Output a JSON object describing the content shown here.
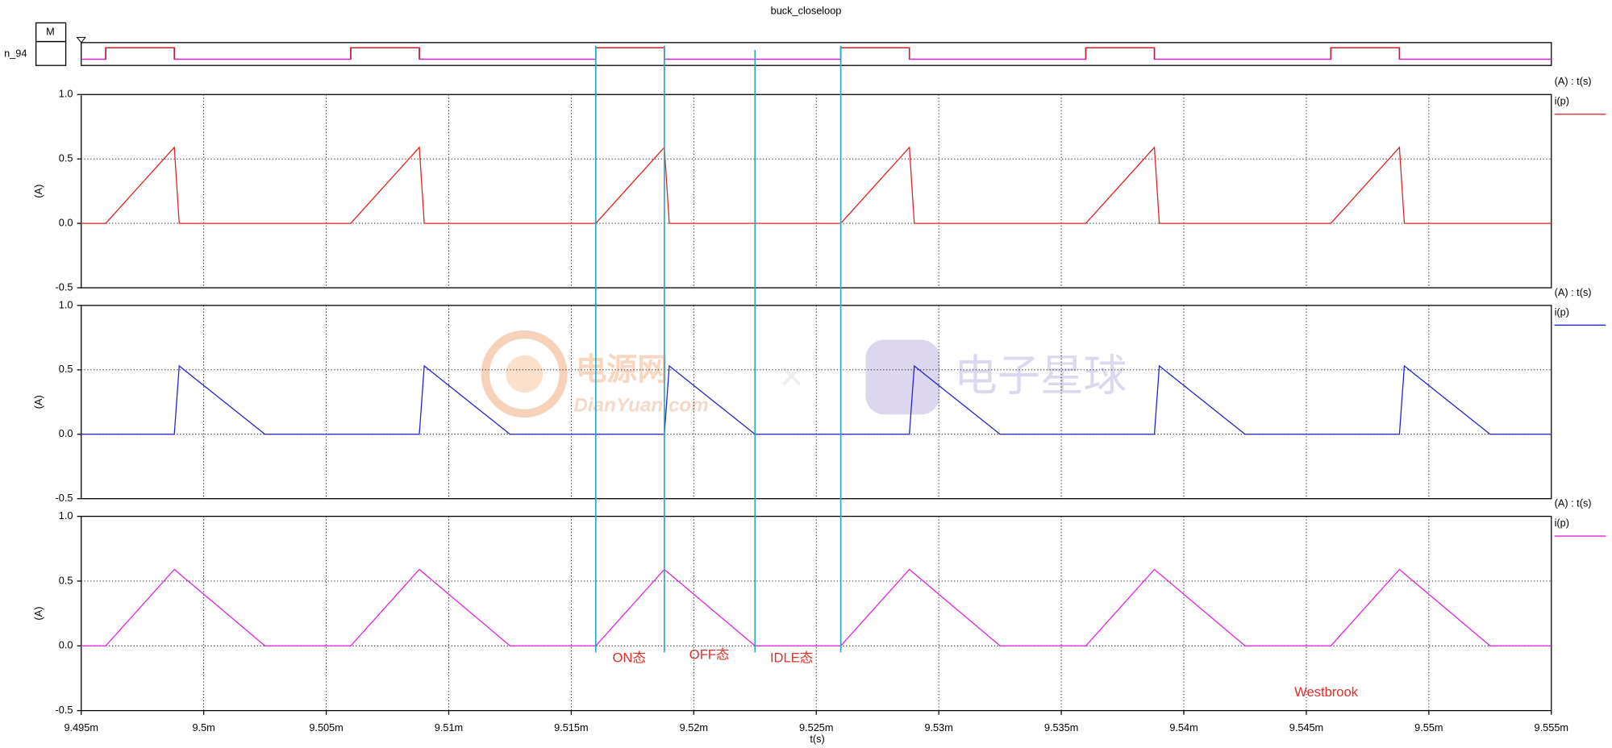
{
  "watermarks": [
    "电源网",
    "DianYuan.com",
    "电子星球"
  ],
  "cursors": [
    0.009516,
    0.0095188,
    0.0095225,
    0.009526
  ],
  "chart_data": [
    {
      "type": "digital",
      "title": "buck_closeloop",
      "label": "n_94",
      "box_label": "M",
      "color": "#e020e0",
      "xlim": [
        0.009495,
        0.009555
      ],
      "x": [
        0.009495,
        0.009496,
        0.0094988,
        0.009506,
        0.0095088,
        0.009516,
        0.0095188,
        0.009526,
        0.0095288,
        0.009536,
        0.0095388,
        0.009546,
        0.0095488,
        0.009555
      ],
      "values": [
        0,
        1,
        0,
        1,
        0,
        1,
        0,
        1,
        0,
        1,
        0,
        1,
        0,
        0
      ]
    },
    {
      "type": "line",
      "y_label": "(A)",
      "legend_header": "(A) : t(s)",
      "grid": true,
      "xlim": [
        0.009495,
        0.009555
      ],
      "ylim": [
        -0.5,
        1
      ],
      "yticks": [
        -0.5,
        {
          "value": 0,
          "label": "0.0"
        },
        0.5,
        {
          "value": 1,
          "label": "1.0"
        }
      ],
      "series": [
        {
          "name": "i(p)",
          "color": "#e02020",
          "x": [
            0.009495,
            0.009496,
            0.0094988,
            0.009499,
            0.009506,
            0.0095088,
            0.009509,
            0.009516,
            0.0095188,
            0.009519,
            0.009526,
            0.0095288,
            0.009529,
            0.009536,
            0.0095388,
            0.009539,
            0.009546,
            0.0095488,
            0.009549,
            0.009555
          ],
          "values": [
            0,
            0,
            0.59,
            0,
            0,
            0.59,
            0,
            0,
            0.59,
            0,
            0,
            0.59,
            0,
            0,
            0.59,
            0,
            0,
            0.59,
            0,
            0
          ]
        }
      ]
    },
    {
      "type": "line",
      "y_label": "(A)",
      "legend_header": "(A) : t(s)",
      "grid": true,
      "xlim": [
        0.009495,
        0.009555
      ],
      "ylim": [
        -0.5,
        1
      ],
      "yticks": [
        -0.5,
        {
          "value": 0,
          "label": "0.0"
        },
        0.5,
        {
          "value": 1,
          "label": "1.0"
        }
      ],
      "series": [
        {
          "name": "i(p)",
          "color": "#2020d0",
          "x": [
            0.009495,
            0.0094988,
            0.009499,
            0.0095025,
            0.0095088,
            0.009509,
            0.0095125,
            0.0095188,
            0.009519,
            0.0095225,
            0.0095288,
            0.009529,
            0.0095325,
            0.0095388,
            0.009539,
            0.0095425,
            0.0095488,
            0.009549,
            0.0095525,
            0.009555
          ],
          "values": [
            0,
            0,
            0.53,
            0,
            0,
            0.53,
            0,
            0,
            0.53,
            0,
            0,
            0.53,
            0,
            0,
            0.53,
            0,
            0,
            0.53,
            0,
            0
          ]
        }
      ]
    },
    {
      "type": "line",
      "y_label": "(A)",
      "legend_header": "(A) : t(s)",
      "grid": true,
      "x_label": "t(s)",
      "xlim": [
        0.009495,
        0.009555
      ],
      "ylim": [
        -0.5,
        1
      ],
      "xticks": [
        {
          "value": 0.009495,
          "label": "9.495m"
        },
        {
          "value": 0.0095,
          "label": "9.5m"
        },
        {
          "value": 0.009505,
          "label": "9.505m"
        },
        {
          "value": 0.00951,
          "label": "9.51m"
        },
        {
          "value": 0.009515,
          "label": "9.515m"
        },
        {
          "value": 0.00952,
          "label": "9.52m"
        },
        {
          "value": 0.009525,
          "label": "9.525m"
        },
        {
          "value": 0.00953,
          "label": "9.53m"
        },
        {
          "value": 0.009535,
          "label": "9.535m"
        },
        {
          "value": 0.00954,
          "label": "9.54m"
        },
        {
          "value": 0.009545,
          "label": "9.545m"
        },
        {
          "value": 0.00955,
          "label": "9.55m"
        },
        {
          "value": 0.009555,
          "label": "9.555m"
        }
      ],
      "yticks": [
        -0.5,
        {
          "value": 0,
          "label": "0.0"
        },
        0.5,
        {
          "value": 1,
          "label": "1.0"
        }
      ],
      "annotations": [
        "ON态",
        "OFF态",
        "IDLE态",
        "Westbrook"
      ],
      "series": [
        {
          "name": "i(p)",
          "color": "#e020e0",
          "x": [
            0.009495,
            0.009496,
            0.0094988,
            0.0095025,
            0.009506,
            0.0095088,
            0.0095125,
            0.009516,
            0.0095188,
            0.0095225,
            0.009526,
            0.0095288,
            0.0095325,
            0.009536,
            0.0095388,
            0.0095425,
            0.009546,
            0.0095488,
            0.0095525,
            0.009555
          ],
          "values": [
            0,
            0,
            0.59,
            0,
            0,
            0.59,
            0,
            0,
            0.59,
            0,
            0,
            0.59,
            0,
            0,
            0.59,
            0,
            0,
            0.59,
            0,
            0
          ]
        }
      ]
    }
  ]
}
